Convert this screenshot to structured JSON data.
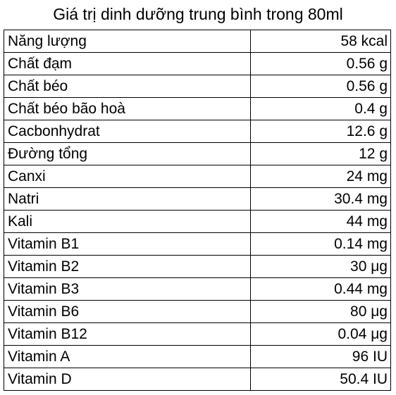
{
  "title": "Giá trị dinh dưỡng trung bình trong 80ml",
  "rows": [
    {
      "label": "Năng lượng",
      "value": "58 kcal"
    },
    {
      "label": "Chất đạm",
      "value": "0.56 g"
    },
    {
      "label": "Chất béo",
      "value": "0.56 g"
    },
    {
      "label": "Chất béo bão hoà",
      "value": "0.4 g"
    },
    {
      "label": "Cacbonhydrat",
      "value": "12.6 g"
    },
    {
      "label": "Đường tổng",
      "value": "12 g"
    },
    {
      "label": "Canxi",
      "value": "24 mg"
    },
    {
      "label": "Natri",
      "value": "30.4 mg"
    },
    {
      "label": "Kali",
      "value": "44 mg"
    },
    {
      "label": "Vitamin B1",
      "value": "0.14 mg"
    },
    {
      "label": "Vitamin B2",
      "value": "30 μg"
    },
    {
      "label": "Vitamin B3",
      "value": "0.44 mg"
    },
    {
      "label": "Vitamin B6",
      "value": "80 μg"
    },
    {
      "label": "Vitamin B12",
      "value": "0.04 μg"
    },
    {
      "label": "Vitamin A",
      "value": "96 IU"
    },
    {
      "label": "Vitamin D",
      "value": "50.4 IU"
    }
  ]
}
